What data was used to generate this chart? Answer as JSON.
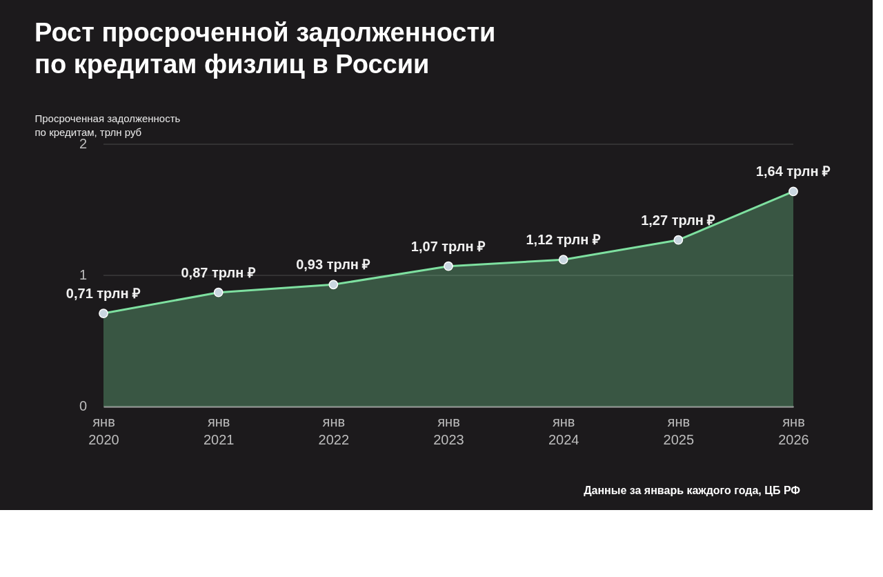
{
  "chart_data": {
    "type": "area",
    "title": "Рост просроченной задолженности\nпо кредитам физлиц в России",
    "ylabel": "Просроченная задолженность\nпо кредитам, трлн руб",
    "categories": [
      "янв 2020",
      "янв 2021",
      "янв 2022",
      "янв 2023",
      "янв 2024",
      "янв 2025",
      "янв 2026"
    ],
    "series": [
      {
        "color": "#7ee0a0",
        "values": [
          0.71,
          0.87,
          0.93,
          1.07,
          1.12,
          1.27,
          1.64
        ],
        "value_labels": [
          "0,71 трлн ₽",
          "0,87 трлн ₽",
          "0,93 трлн ₽",
          "1,07 трлн ₽",
          "1,12 трлн ₽",
          "1,27 трлн ₽",
          "1,64 трлн ₽"
        ]
      }
    ],
    "ylim": [
      0,
      2
    ],
    "yticks": [
      0,
      1,
      2
    ],
    "grid": "y",
    "marker": "circle",
    "annotations": [
      "Данные за январь каждого года, ЦБ РФ"
    ]
  }
}
